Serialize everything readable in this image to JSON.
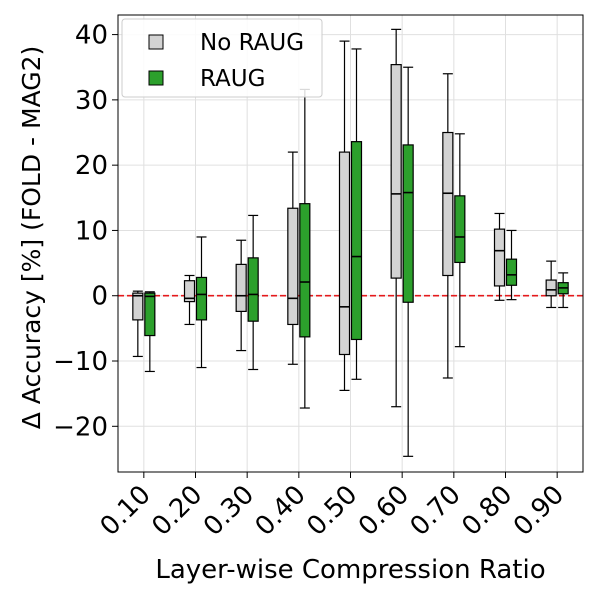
{
  "chart_data": {
    "type": "box",
    "title": "",
    "xlabel": "Layer-wise Compression Ratio",
    "ylabel": "Δ Accuracy [%] (FOLD - MAG2)",
    "categories": [
      "0.10",
      "0.20",
      "0.30",
      "0.40",
      "0.50",
      "0.60",
      "0.70",
      "0.80",
      "0.90"
    ],
    "ylim": [
      -27,
      43
    ],
    "yticks": [
      -20,
      -10,
      0,
      10,
      20,
      30,
      40
    ],
    "ytick_labels": [
      "−20",
      "−10",
      "0",
      "10",
      "20",
      "30",
      "40"
    ],
    "grid": true,
    "reference_line": {
      "y": 0,
      "color": "#e41a1c",
      "style": "dashed"
    },
    "legend": {
      "position": "top-left"
    },
    "series": [
      {
        "name": "No RAUG",
        "color": "#d3d3d3",
        "boxes": [
          {
            "whislo": -9.3,
            "q1": -3.7,
            "med": 0.0,
            "q3": 0.4,
            "whishi": 0.7
          },
          {
            "whislo": -4.4,
            "q1": -0.9,
            "med": -0.4,
            "q3": 2.3,
            "whishi": 3.1
          },
          {
            "whislo": -8.4,
            "q1": -2.4,
            "med": 0.0,
            "q3": 4.8,
            "whishi": 8.5
          },
          {
            "whislo": -10.5,
            "q1": -4.4,
            "med": -0.4,
            "q3": 13.4,
            "whishi": 22.0
          },
          {
            "whislo": -14.5,
            "q1": -9.0,
            "med": -1.7,
            "q3": 22.0,
            "whishi": 39.0
          },
          {
            "whislo": -17.0,
            "q1": 2.7,
            "med": 15.6,
            "q3": 35.4,
            "whishi": 40.8
          },
          {
            "whislo": -12.6,
            "q1": 3.1,
            "med": 15.7,
            "q3": 25.0,
            "whishi": 34.0
          },
          {
            "whislo": -0.7,
            "q1": 1.5,
            "med": 6.9,
            "q3": 10.2,
            "whishi": 12.6
          },
          {
            "whislo": -1.8,
            "q1": 0.0,
            "med": 0.9,
            "q3": 2.4,
            "whishi": 5.3
          }
        ]
      },
      {
        "name": "RAUG",
        "color": "#2ca02c",
        "boxes": [
          {
            "whislo": -11.6,
            "q1": -6.1,
            "med": -0.1,
            "q3": 0.4,
            "whishi": 0.6
          },
          {
            "whislo": -11.0,
            "q1": -3.7,
            "med": 0.2,
            "q3": 2.8,
            "whishi": 9.0
          },
          {
            "whislo": -11.3,
            "q1": -3.9,
            "med": 0.2,
            "q3": 5.8,
            "whishi": 12.3
          },
          {
            "whislo": -17.2,
            "q1": -6.3,
            "med": 2.1,
            "q3": 14.1,
            "whishi": 31.6
          },
          {
            "whislo": -12.8,
            "q1": -6.7,
            "med": 6.0,
            "q3": 23.6,
            "whishi": 37.8
          },
          {
            "whislo": -24.6,
            "q1": -1.0,
            "med": 15.8,
            "q3": 23.1,
            "whishi": 35.0
          },
          {
            "whislo": -7.8,
            "q1": 5.1,
            "med": 9.0,
            "q3": 15.3,
            "whishi": 24.8
          },
          {
            "whislo": -0.6,
            "q1": 1.6,
            "med": 3.2,
            "q3": 5.6,
            "whishi": 10.0
          },
          {
            "whislo": -1.8,
            "q1": 0.3,
            "med": 1.2,
            "q3": 2.0,
            "whishi": 3.5
          }
        ]
      }
    ]
  }
}
